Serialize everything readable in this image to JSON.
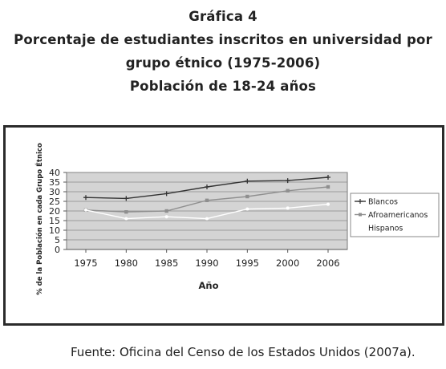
{
  "header": {
    "line1": "Gráfica 4",
    "line2": "Porcentaje de estudiantes inscritos en universidad por",
    "line3": "grupo étnico (1975-2006)",
    "line4": "Población de 18-24 años"
  },
  "source": "Fuente: Oficina del Censo de los Estados Unidos (2007a).",
  "colors": {
    "plot_bg": "#d4d4d4",
    "blancos": "#333333",
    "afroamericanos": "#8f8f8f",
    "hispanos": "#ffffff"
  },
  "chart_data": {
    "type": "line",
    "categories": [
      "1975",
      "1980",
      "1985",
      "1990",
      "1995",
      "2000",
      "2006"
    ],
    "series": [
      {
        "name": "Blancos",
        "values": [
          27,
          26.5,
          29,
          32.5,
          35.5,
          35.8,
          37.5
        ],
        "marker": "plus"
      },
      {
        "name": "Afroamericanos",
        "values": [
          20.5,
          19.5,
          20,
          25.5,
          27.5,
          30.5,
          32.5
        ],
        "marker": "square"
      },
      {
        "name": "Hispanos",
        "values": [
          20.5,
          16,
          17,
          16,
          21,
          21.5,
          23.5
        ],
        "marker": "dot"
      }
    ],
    "xlabel": "Año",
    "ylabel": "% de la Población en cada Grupo Étnico",
    "ylim": [
      0,
      40
    ],
    "yticks": [
      "0",
      "5",
      "10",
      "15",
      "20",
      "25",
      "30",
      "35",
      "40"
    ],
    "grid": true,
    "legend": "right"
  }
}
